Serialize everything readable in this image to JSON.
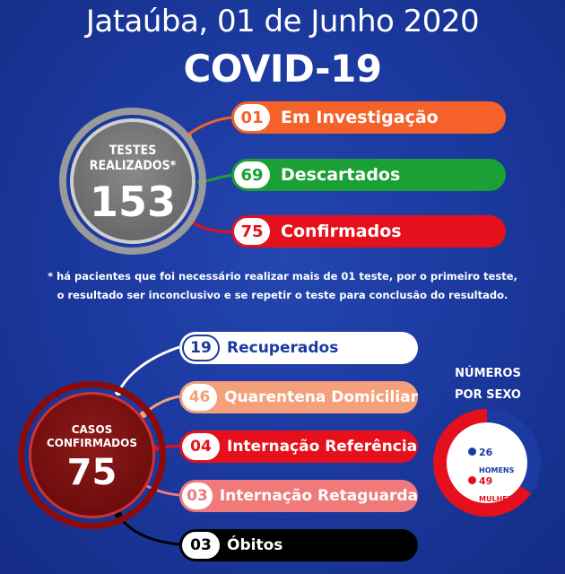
{
  "header": {
    "date_title": "Jataúba, 01 de Junho 2020",
    "title": "COVID-19"
  },
  "tests": {
    "label": "TESTES REALIZADOS*",
    "value": "153"
  },
  "test_results": [
    {
      "value": "01",
      "label": "Em Investigação",
      "color": "#f4622a"
    },
    {
      "value": "69",
      "label": "Descartados",
      "color": "#1aa035"
    },
    {
      "value": "75",
      "label": "Confirmados",
      "color": "#e5101c"
    }
  ],
  "note": {
    "line1": "* há pacientes que foi necessário realizar mais de 01 teste, por o primeiro teste,",
    "line2": "o resultado ser inconclusivo  e se repetir o teste para conclusão do resultado."
  },
  "cases": {
    "label_line1": "CASOS",
    "label_line2": "CONFIRMADOS",
    "value": "75"
  },
  "case_breakdown": [
    {
      "value": "19",
      "label": "Recuperados",
      "color": "#ffffff",
      "text_color": "#1c3aa0"
    },
    {
      "value": "46",
      "label": "Quarentena Domiciliar",
      "color": "#f4a07a",
      "text_color": "#ffffff"
    },
    {
      "value": "04",
      "label": "Internação Referência",
      "color": "#e5101c",
      "text_color": "#ffffff"
    },
    {
      "value": "03",
      "label": "Internação Retaguarda",
      "color": "#f07a7a",
      "text_color": "#ffffff"
    },
    {
      "value": "03",
      "label": "Óbitos",
      "color": "#000000",
      "text_color": "#ffffff"
    }
  ],
  "by_sex": {
    "title_line1": "NÚMEROS",
    "title_line2": "POR SEXO",
    "men_value": "26",
    "men_label": "HOMENS",
    "women_value": "49",
    "women_label": "MULHERES",
    "men_color": "#1c3aa0",
    "women_color": "#e5101c",
    "men": 26,
    "women": 49
  }
}
